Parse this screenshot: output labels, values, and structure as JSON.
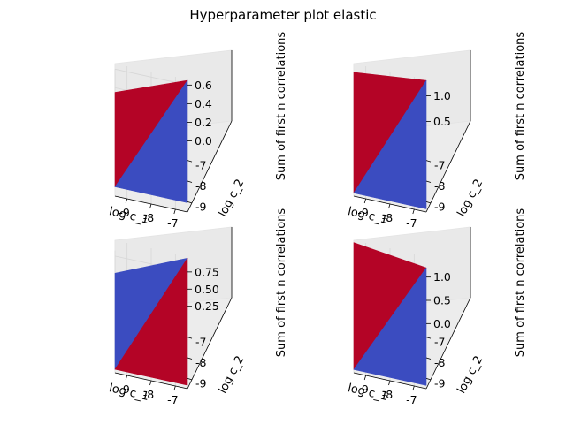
{
  "figure": {
    "title": "Hyperparameter plot elastic"
  },
  "colors": {
    "high": "#b40426",
    "low": "#3b4cc0",
    "pane": "#f2f2f2",
    "grid": "#d7d7d7"
  },
  "chart_data": [
    {
      "type": "surface",
      "xlabel": "log c_1",
      "ylabel": "log c_2",
      "zlabel": "Sum of first n correlations",
      "x_ticks": [
        "-9",
        "-8",
        "-7"
      ],
      "y_ticks": [
        "-9",
        "-8",
        "-7"
      ],
      "z_ticks": [
        "0.0",
        "0.2",
        "0.4",
        "0.6"
      ],
      "x_range": [
        -9.5,
        -6.5
      ],
      "y_range": [
        -9.5,
        -6.5
      ],
      "z_range": [
        -0.1,
        0.66
      ],
      "grid": true,
      "triangles": [
        {
          "color": "high",
          "points": [
            [
              -9.5,
              -9.5,
              0.0
            ],
            [
              -6.5,
              -6.5,
              0.65
            ],
            [
              -9.5,
              -6.5,
              0.35
            ]
          ]
        },
        {
          "color": "low",
          "points": [
            [
              -9.5,
              -9.5,
              0.0
            ],
            [
              -6.5,
              -6.5,
              0.65
            ],
            [
              -6.5,
              -9.5,
              0.0
            ]
          ]
        }
      ]
    },
    {
      "type": "surface",
      "xlabel": "log c_1",
      "ylabel": "log c_2",
      "zlabel": "Sum of first n correlations",
      "x_ticks": [
        "-9",
        "-8",
        "-7"
      ],
      "y_ticks": [
        "-9",
        "-8",
        "-7"
      ],
      "z_ticks": [
        "0.5",
        "1.0"
      ],
      "x_range": [
        -9.5,
        -6.5
      ],
      "y_range": [
        -9.5,
        -6.5
      ],
      "z_range": [
        -0.06,
        1.32
      ],
      "grid": true,
      "triangles": [
        {
          "color": "high",
          "points": [
            [
              -9.5,
              -9.5,
              0.0
            ],
            [
              -6.5,
              -6.5,
              1.3
            ],
            [
              -9.5,
              -6.5,
              1.15
            ]
          ]
        },
        {
          "color": "low",
          "points": [
            [
              -9.5,
              -9.5,
              0.0
            ],
            [
              -6.5,
              -6.5,
              1.3
            ],
            [
              -6.5,
              -9.5,
              0.0
            ]
          ]
        }
      ]
    },
    {
      "type": "surface",
      "xlabel": "log c_1",
      "ylabel": "log c_2",
      "zlabel": "Sum of first n correlations",
      "x_ticks": [
        "-9",
        "-8",
        "-7"
      ],
      "y_ticks": [
        "-9",
        "-8",
        "-7"
      ],
      "z_ticks": [
        "0.25",
        "0.50",
        "0.75"
      ],
      "x_range": [
        -9.5,
        -6.5
      ],
      "y_range": [
        -9.5,
        -6.5
      ],
      "z_range": [
        -0.05,
        0.98
      ],
      "grid": true,
      "triangles": [
        {
          "color": "low",
          "points": [
            [
              -9.5,
              -9.5,
              0.0
            ],
            [
              -6.5,
              -6.5,
              0.95
            ],
            [
              -9.5,
              -6.5,
              0.5
            ]
          ]
        },
        {
          "color": "high",
          "points": [
            [
              -9.5,
              -9.5,
              0.0
            ],
            [
              -6.5,
              -6.5,
              0.95
            ],
            [
              -6.5,
              -9.5,
              0.0
            ]
          ]
        }
      ]
    },
    {
      "type": "surface",
      "xlabel": "log c_1",
      "ylabel": "log c_2",
      "zlabel": "Sum of first n correlations",
      "x_ticks": [
        "-9",
        "-8",
        "-7"
      ],
      "y_ticks": [
        "-9",
        "-8",
        "-7"
      ],
      "z_ticks": [
        "0.0",
        "0.5",
        "1.0"
      ],
      "x_range": [
        -9.5,
        -6.5
      ],
      "y_range": [
        -9.5,
        -6.5
      ],
      "z_range": [
        -0.07,
        1.45
      ],
      "grid": true,
      "triangles": [
        {
          "color": "high",
          "points": [
            [
              -9.5,
              -9.5,
              0.0
            ],
            [
              -6.5,
              -6.5,
              1.2
            ],
            [
              -9.5,
              -6.5,
              1.4
            ]
          ]
        },
        {
          "color": "low",
          "points": [
            [
              -9.5,
              -9.5,
              0.0
            ],
            [
              -6.5,
              -6.5,
              1.2
            ],
            [
              -6.5,
              -9.5,
              0.0
            ]
          ]
        }
      ]
    }
  ]
}
